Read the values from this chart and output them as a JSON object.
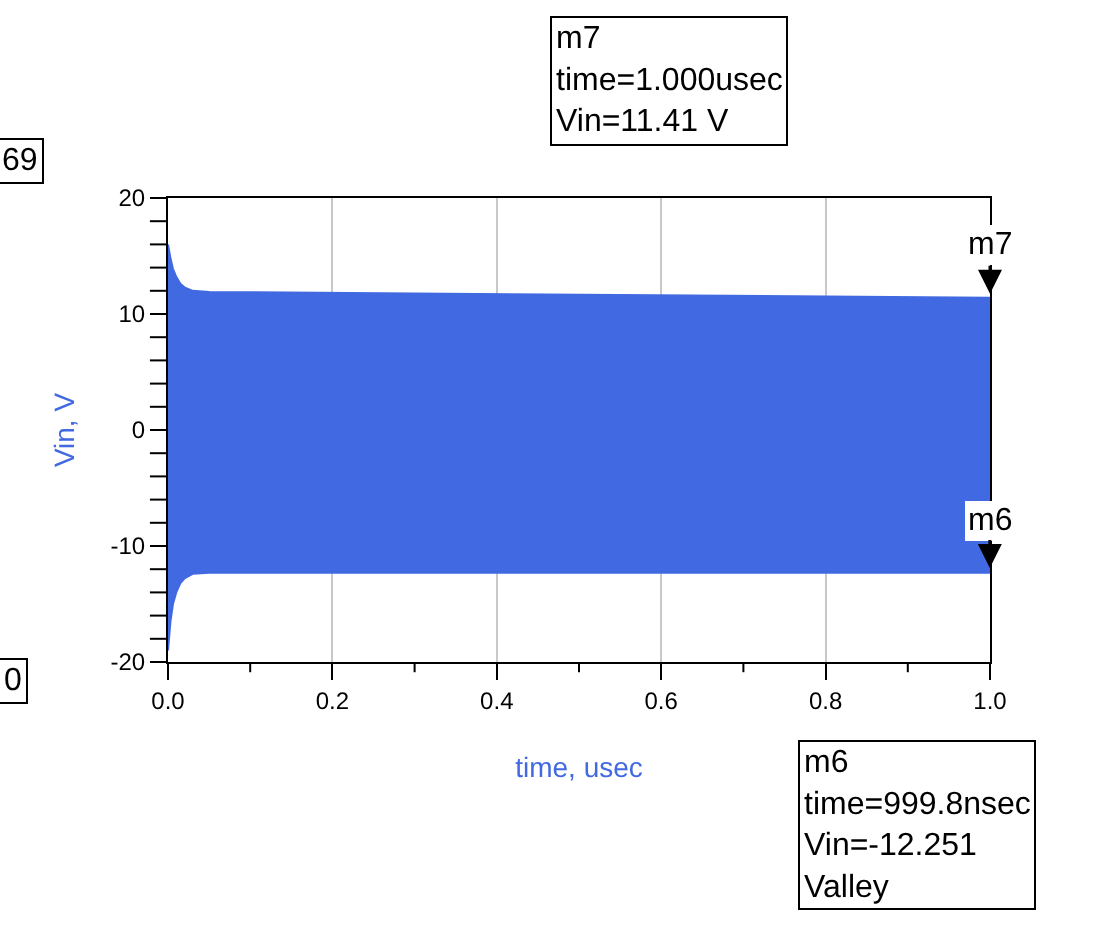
{
  "chart_data": {
    "type": "area",
    "xlabel": "time, usec",
    "ylabel": "Vin, V",
    "x": [
      0,
      0.003,
      0.006,
      0.01,
      0.015,
      0.02,
      0.03,
      0.05,
      1.0
    ],
    "series": [
      {
        "color": "#4169e1",
        "values": [
          16,
          14.8,
          13.9,
          13.2,
          12.6,
          12.3,
          12.0,
          11.9,
          11.41
        ]
      },
      {
        "color": "#4169e1",
        "values": [
          -19,
          -16.5,
          -15,
          -14,
          -13.2,
          -12.8,
          -12.4,
          -12.3,
          -12.3
        ]
      }
    ],
    "xlim": [
      0,
      1
    ],
    "ylim": [
      -20,
      20
    ],
    "xticks": [
      {
        "value": 0,
        "label": "0.0"
      },
      {
        "value": 0.1,
        "label": null
      },
      {
        "value": 0.2,
        "label": "0.2"
      },
      {
        "value": 0.3,
        "label": null
      },
      {
        "value": 0.4,
        "label": "0.4"
      },
      {
        "value": 0.5,
        "label": null
      },
      {
        "value": 0.6,
        "label": "0.6"
      },
      {
        "value": 0.7,
        "label": null
      },
      {
        "value": 0.8,
        "label": "0.8"
      },
      {
        "value": 0.9,
        "label": null
      },
      {
        "value": 1,
        "label": "1.0"
      }
    ],
    "yticks": [
      -20,
      {
        "value": -18,
        "label": null
      },
      {
        "value": -16,
        "label": null
      },
      {
        "value": -14,
        "label": null
      },
      {
        "value": -12,
        "label": null
      },
      -10,
      {
        "value": -8,
        "label": null
      },
      {
        "value": -6,
        "label": null
      },
      {
        "value": -4,
        "label": null
      },
      {
        "value": -2,
        "label": null
      },
      0,
      {
        "value": 2,
        "label": null
      },
      {
        "value": 4,
        "label": null
      },
      {
        "value": 6,
        "label": null
      },
      {
        "value": 8,
        "label": null
      },
      10,
      {
        "value": 12,
        "label": null
      },
      {
        "value": 14,
        "label": null
      },
      {
        "value": 16,
        "label": null
      },
      {
        "value": 18,
        "label": null
      },
      20
    ],
    "grid": "x",
    "annotations": [
      {
        "text": "m7",
        "x": 1.0,
        "y": 11.41
      },
      {
        "text": "m6",
        "x": 0.9998,
        "y": -12.251
      },
      "m7\ntime=1.000usec\nVin=11.41 V",
      "m6\ntime=999.8nsec\nVin=-12.251\nValley",
      "69",
      "0"
    ]
  }
}
